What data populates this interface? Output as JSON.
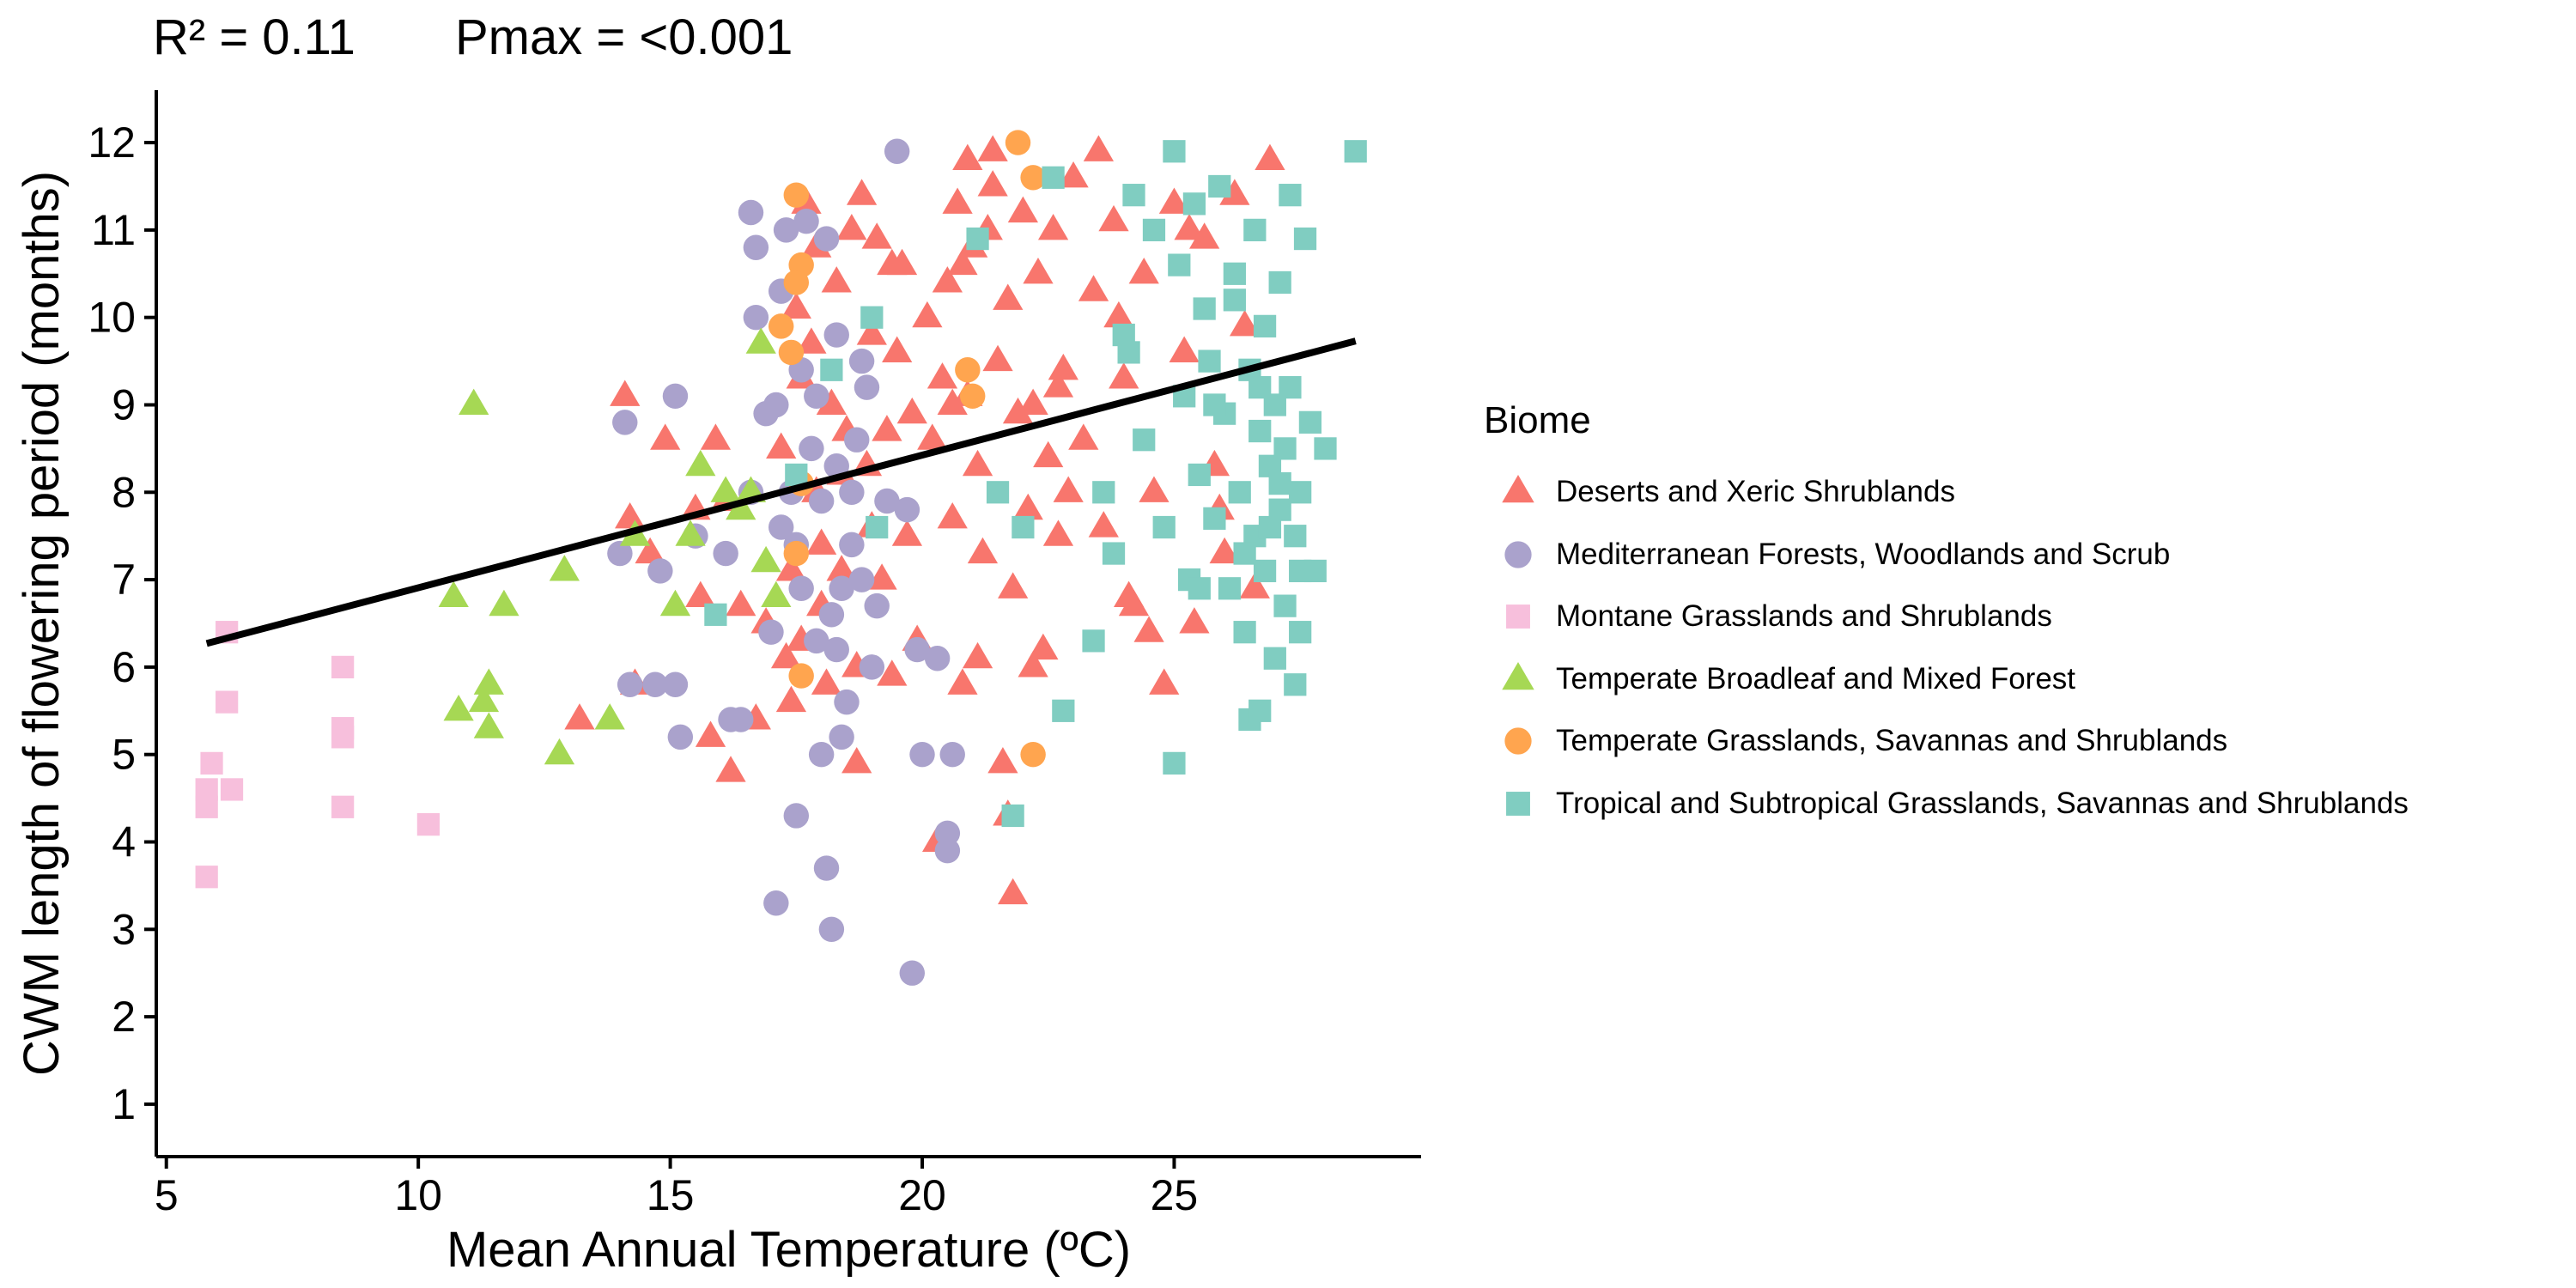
{
  "stats": {
    "r2": "R² =  0.11",
    "pmax": "Pmax =  <0.001"
  },
  "chart_data": {
    "type": "scatter",
    "title": "",
    "xlabel": "Mean Annual Temperature (ºC)",
    "ylabel": "CWM length of flowering period (months)",
    "xlim": [
      4.8,
      29.9
    ],
    "ylim": [
      0.4,
      12.6
    ],
    "xticks": [
      5,
      10,
      15,
      20,
      25
    ],
    "yticks": [
      1,
      2,
      3,
      4,
      5,
      6,
      7,
      8,
      9,
      10,
      11,
      12
    ],
    "legend_title": "Biome",
    "legend_position": "right",
    "fit_line": {
      "x": [
        5.8,
        28.6
      ],
      "y": [
        6.27,
        9.73
      ]
    },
    "series": [
      {
        "name": "Deserts and Xeric Shrublands",
        "shape": "triangle",
        "color": "#F8766D",
        "points": [
          [
            14.1,
            9.1
          ],
          [
            14.2,
            7.7
          ],
          [
            14.3,
            5.8
          ],
          [
            14.6,
            7.3
          ],
          [
            13.2,
            5.4
          ],
          [
            14.9,
            8.6
          ],
          [
            15.5,
            7.8
          ],
          [
            15.6,
            6.8
          ],
          [
            15.9,
            8.6
          ],
          [
            16.1,
            7.9
          ],
          [
            16.4,
            6.7
          ],
          [
            16.2,
            4.8
          ],
          [
            15.8,
            5.2
          ],
          [
            16.9,
            6.5
          ],
          [
            16.7,
            5.4
          ],
          [
            17.2,
            8.5
          ],
          [
            17.3,
            6.1
          ],
          [
            17.4,
            7.1
          ],
          [
            17.5,
            10.1
          ],
          [
            17.6,
            9.3
          ],
          [
            17.4,
            5.6
          ],
          [
            17.6,
            6.3
          ],
          [
            17.7,
            11.3
          ],
          [
            17.8,
            9.7
          ],
          [
            17.9,
            8.0
          ],
          [
            18.0,
            7.4
          ],
          [
            18.1,
            5.8
          ],
          [
            18.0,
            6.7
          ],
          [
            18.2,
            9.0
          ],
          [
            18.3,
            10.4
          ],
          [
            18.4,
            7.1
          ],
          [
            18.5,
            8.7
          ],
          [
            18.6,
            11.0
          ],
          [
            18.7,
            6.0
          ],
          [
            18.8,
            11.4
          ],
          [
            18.7,
            4.9
          ],
          [
            18.9,
            8.3
          ],
          [
            19.0,
            9.8
          ],
          [
            19.1,
            10.9
          ],
          [
            19.2,
            7.0
          ],
          [
            19.3,
            8.7
          ],
          [
            19.4,
            5.9
          ],
          [
            19.5,
            9.6
          ],
          [
            19.6,
            10.6
          ],
          [
            19.7,
            7.5
          ],
          [
            19.8,
            8.9
          ],
          [
            19.9,
            6.3
          ],
          [
            20.1,
            10.0
          ],
          [
            20.2,
            8.6
          ],
          [
            20.3,
            4.0
          ],
          [
            20.4,
            9.3
          ],
          [
            20.5,
            10.4
          ],
          [
            20.6,
            7.7
          ],
          [
            20.7,
            11.3
          ],
          [
            20.8,
            5.8
          ],
          [
            20.9,
            9.1
          ],
          [
            20.9,
            11.8
          ],
          [
            21.0,
            10.8
          ],
          [
            21.1,
            8.3
          ],
          [
            21.2,
            7.3
          ],
          [
            21.3,
            11.0
          ],
          [
            21.4,
            11.5
          ],
          [
            21.5,
            9.5
          ],
          [
            21.6,
            4.9
          ],
          [
            21.7,
            10.2
          ],
          [
            21.8,
            6.9
          ],
          [
            21.8,
            3.4
          ],
          [
            21.9,
            8.9
          ],
          [
            22.0,
            11.2
          ],
          [
            22.1,
            7.8
          ],
          [
            22.2,
            9.0
          ],
          [
            22.3,
            10.5
          ],
          [
            22.4,
            6.2
          ],
          [
            22.5,
            8.4
          ],
          [
            22.6,
            11.0
          ],
          [
            22.7,
            7.5
          ],
          [
            22.8,
            9.4
          ],
          [
            23.0,
            11.6
          ],
          [
            23.2,
            8.6
          ],
          [
            23.4,
            10.3
          ],
          [
            23.6,
            7.6
          ],
          [
            23.8,
            11.1
          ],
          [
            24.0,
            9.3
          ],
          [
            24.2,
            6.7
          ],
          [
            24.4,
            10.5
          ],
          [
            24.6,
            8.0
          ],
          [
            24.8,
            5.8
          ],
          [
            25.0,
            11.3
          ],
          [
            25.2,
            9.6
          ],
          [
            25.4,
            6.5
          ],
          [
            25.6,
            10.9
          ],
          [
            25.8,
            8.3
          ],
          [
            26.0,
            7.3
          ],
          [
            26.2,
            11.4
          ],
          [
            26.4,
            9.9
          ],
          [
            26.6,
            6.9
          ],
          [
            26.9,
            11.8
          ],
          [
            25.3,
            11.0
          ],
          [
            23.5,
            11.9
          ],
          [
            22.7,
            9.2
          ],
          [
            21.4,
            11.9
          ],
          [
            20.8,
            10.6
          ],
          [
            19.4,
            10.6
          ],
          [
            23.9,
            10.0
          ],
          [
            22.2,
            6.0
          ],
          [
            21.1,
            6.1
          ],
          [
            25.9,
            7.8
          ],
          [
            24.5,
            6.4
          ],
          [
            17.9,
            10.8
          ],
          [
            18.4,
            8.2
          ],
          [
            19.0,
            7.6
          ],
          [
            20.6,
            9.0
          ],
          [
            22.9,
            8.0
          ],
          [
            24.1,
            6.8
          ],
          [
            21.7,
            4.3
          ]
        ]
      },
      {
        "name": "Mediterranean Forests, Woodlands and Scrub",
        "shape": "circle",
        "color": "#AAA2CC",
        "points": [
          [
            14.1,
            8.8
          ],
          [
            14.0,
            7.3
          ],
          [
            14.2,
            5.8
          ],
          [
            15.1,
            9.1
          ],
          [
            14.7,
            5.8
          ],
          [
            15.1,
            5.8
          ],
          [
            15.2,
            5.2
          ],
          [
            14.8,
            7.1
          ],
          [
            15.5,
            7.5
          ],
          [
            16.2,
            5.4
          ],
          [
            16.4,
            5.4
          ],
          [
            16.6,
            8.0
          ],
          [
            16.6,
            11.2
          ],
          [
            16.7,
            10.0
          ],
          [
            16.9,
            8.9
          ],
          [
            17.1,
            9.0
          ],
          [
            17.2,
            10.3
          ],
          [
            17.3,
            11.0
          ],
          [
            17.0,
            6.4
          ],
          [
            17.1,
            3.3
          ],
          [
            17.4,
            8.0
          ],
          [
            17.5,
            7.4
          ],
          [
            17.6,
            6.9
          ],
          [
            17.7,
            11.1
          ],
          [
            17.8,
            8.5
          ],
          [
            17.9,
            9.1
          ],
          [
            18.0,
            7.9
          ],
          [
            18.1,
            10.9
          ],
          [
            18.2,
            6.6
          ],
          [
            18.3,
            8.3
          ],
          [
            18.4,
            6.9
          ],
          [
            18.0,
            5.0
          ],
          [
            18.1,
            3.7
          ],
          [
            18.2,
            3.0
          ],
          [
            18.3,
            6.2
          ],
          [
            18.5,
            5.6
          ],
          [
            18.6,
            7.4
          ],
          [
            18.7,
            8.6
          ],
          [
            18.8,
            7.0
          ],
          [
            18.9,
            9.2
          ],
          [
            19.1,
            6.7
          ],
          [
            19.3,
            7.9
          ],
          [
            19.5,
            11.9
          ],
          [
            19.7,
            7.8
          ],
          [
            19.9,
            6.2
          ],
          [
            20.0,
            5.0
          ],
          [
            20.3,
            6.1
          ],
          [
            20.5,
            4.1
          ],
          [
            20.6,
            5.0
          ],
          [
            19.8,
            2.5
          ],
          [
            17.5,
            4.3
          ],
          [
            20.5,
            3.9
          ],
          [
            16.7,
            10.8
          ],
          [
            17.6,
            9.4
          ],
          [
            18.3,
            9.8
          ],
          [
            18.6,
            8.0
          ],
          [
            19.0,
            6.0
          ],
          [
            18.4,
            5.2
          ],
          [
            17.2,
            7.6
          ],
          [
            16.1,
            7.3
          ],
          [
            17.9,
            6.3
          ],
          [
            18.8,
            9.5
          ]
        ]
      },
      {
        "name": "Montane Grasslands and Shrublands",
        "shape": "square",
        "color": "#F7BFDC",
        "points": [
          [
            5.8,
            3.6
          ],
          [
            5.8,
            4.4
          ],
          [
            5.8,
            4.6
          ],
          [
            5.9,
            4.9
          ],
          [
            6.2,
            6.4
          ],
          [
            6.2,
            5.6
          ],
          [
            6.3,
            4.6
          ],
          [
            8.5,
            6.0
          ],
          [
            8.5,
            5.3
          ],
          [
            8.5,
            5.2
          ],
          [
            8.5,
            4.4
          ],
          [
            10.2,
            4.2
          ]
        ]
      },
      {
        "name": "Temperate Broadleaf and Mixed Forest",
        "shape": "triangle",
        "color": "#A6D854",
        "points": [
          [
            11.1,
            9.0
          ],
          [
            10.7,
            6.8
          ],
          [
            10.8,
            5.5
          ],
          [
            11.3,
            5.6
          ],
          [
            11.4,
            5.8
          ],
          [
            11.4,
            5.3
          ],
          [
            11.7,
            6.7
          ],
          [
            12.8,
            5.0
          ],
          [
            12.9,
            7.1
          ],
          [
            13.8,
            5.4
          ],
          [
            14.3,
            7.5
          ],
          [
            15.1,
            6.7
          ],
          [
            15.4,
            7.5
          ],
          [
            15.6,
            8.3
          ],
          [
            16.1,
            8.0
          ],
          [
            16.4,
            7.8
          ],
          [
            16.6,
            8.0
          ],
          [
            16.8,
            9.7
          ],
          [
            17.1,
            6.8
          ],
          [
            16.9,
            7.2
          ]
        ]
      },
      {
        "name": "Temperate Grasslands, Savannas and Shrublands",
        "shape": "circle",
        "color": "#FFA54F",
        "points": [
          [
            17.5,
            11.4
          ],
          [
            17.6,
            10.6
          ],
          [
            17.5,
            10.4
          ],
          [
            17.4,
            9.6
          ],
          [
            17.6,
            8.1
          ],
          [
            17.5,
            7.3
          ],
          [
            17.6,
            5.9
          ],
          [
            20.9,
            9.4
          ],
          [
            21.0,
            9.1
          ],
          [
            21.9,
            12.0
          ],
          [
            22.2,
            11.6
          ],
          [
            22.2,
            5.0
          ],
          [
            17.2,
            9.9
          ]
        ]
      },
      {
        "name": "Tropical and Subtropical Grasslands, Savannas and Shrublands",
        "shape": "square",
        "color": "#80CDC1",
        "points": [
          [
            15.9,
            6.6
          ],
          [
            17.5,
            8.2
          ],
          [
            18.2,
            9.4
          ],
          [
            19.0,
            10.0
          ],
          [
            19.1,
            7.6
          ],
          [
            21.1,
            10.9
          ],
          [
            21.5,
            8.0
          ],
          [
            21.8,
            4.3
          ],
          [
            22.0,
            7.6
          ],
          [
            22.6,
            11.6
          ],
          [
            22.8,
            5.5
          ],
          [
            23.4,
            6.3
          ],
          [
            23.6,
            8.0
          ],
          [
            23.8,
            7.3
          ],
          [
            24.0,
            9.8
          ],
          [
            24.2,
            11.4
          ],
          [
            24.4,
            8.6
          ],
          [
            24.6,
            11.0
          ],
          [
            24.8,
            7.6
          ],
          [
            25.0,
            11.9
          ],
          [
            25.0,
            4.9
          ],
          [
            25.1,
            10.6
          ],
          [
            25.2,
            9.1
          ],
          [
            25.3,
            7.0
          ],
          [
            25.4,
            11.3
          ],
          [
            25.5,
            8.2
          ],
          [
            25.6,
            10.1
          ],
          [
            25.7,
            9.5
          ],
          [
            25.8,
            7.7
          ],
          [
            25.9,
            11.5
          ],
          [
            26.0,
            8.9
          ],
          [
            26.1,
            6.9
          ],
          [
            26.2,
            10.2
          ],
          [
            26.3,
            8.0
          ],
          [
            26.4,
            6.4
          ],
          [
            26.5,
            9.4
          ],
          [
            26.5,
            5.4
          ],
          [
            26.6,
            7.5
          ],
          [
            26.7,
            8.7
          ],
          [
            26.7,
            5.5
          ],
          [
            26.8,
            9.9
          ],
          [
            26.8,
            7.1
          ],
          [
            26.9,
            8.3
          ],
          [
            27.0,
            6.1
          ],
          [
            27.0,
            9.0
          ],
          [
            27.1,
            7.8
          ],
          [
            27.1,
            10.4
          ],
          [
            27.2,
            8.5
          ],
          [
            27.2,
            6.7
          ],
          [
            27.3,
            11.4
          ],
          [
            27.3,
            9.2
          ],
          [
            27.4,
            5.8
          ],
          [
            27.4,
            7.5
          ],
          [
            27.5,
            8.0
          ],
          [
            27.5,
            6.4
          ],
          [
            27.6,
            10.9
          ],
          [
            27.7,
            8.8
          ],
          [
            27.8,
            7.1
          ],
          [
            28.0,
            8.5
          ],
          [
            28.6,
            11.9
          ],
          [
            26.6,
            11.0
          ],
          [
            26.2,
            10.5
          ],
          [
            25.8,
            9.0
          ],
          [
            26.9,
            7.6
          ],
          [
            27.1,
            8.1
          ],
          [
            26.4,
            7.3
          ],
          [
            25.5,
            6.9
          ],
          [
            26.7,
            9.2
          ],
          [
            27.5,
            7.1
          ],
          [
            24.1,
            9.6
          ]
        ]
      }
    ]
  }
}
